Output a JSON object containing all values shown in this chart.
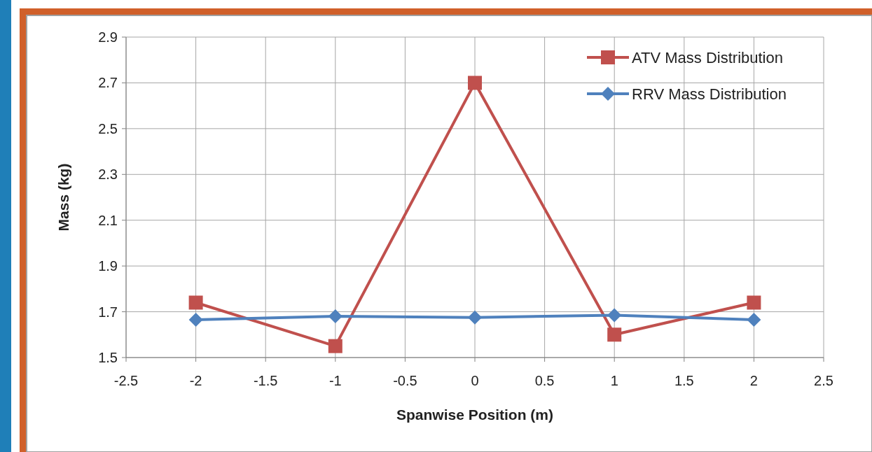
{
  "chart_data": {
    "type": "line",
    "xlabel": "Spanwise Position (m)",
    "ylabel": "Mass (kg)",
    "x": [
      -2,
      -1,
      0,
      1,
      2
    ],
    "series": [
      {
        "name": "ATV Mass Distribution",
        "color": "#c0504d",
        "marker": "square",
        "values": [
          1.74,
          1.55,
          2.7,
          1.6,
          1.74
        ]
      },
      {
        "name": "RRV Mass Distribution",
        "color": "#4f81bd",
        "marker": "diamond",
        "values": [
          1.665,
          1.68,
          1.675,
          1.685,
          1.665
        ]
      }
    ],
    "xlim": [
      -2.5,
      2.5
    ],
    "xticks": [
      -2.5,
      -2,
      -1.5,
      -1,
      -0.5,
      0,
      0.5,
      1,
      1.5,
      2,
      2.5
    ],
    "ylim": [
      1.5,
      2.9
    ],
    "yticks": [
      1.5,
      1.7,
      1.9,
      2.1,
      2.3,
      2.5,
      2.7,
      2.9
    ],
    "grid": true,
    "legend": "top right",
    "line_style": "solid"
  }
}
